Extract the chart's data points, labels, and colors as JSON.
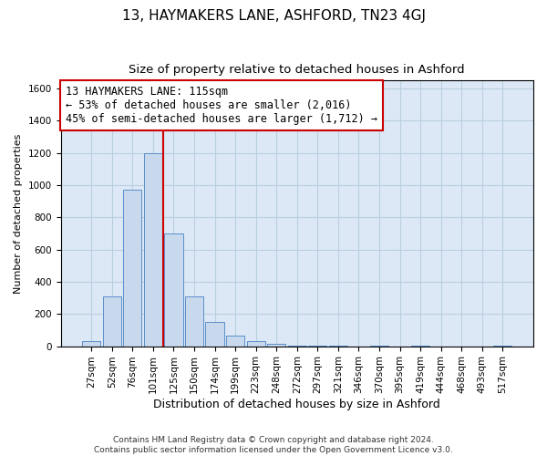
{
  "title": "13, HAYMAKERS LANE, ASHFORD, TN23 4GJ",
  "subtitle": "Size of property relative to detached houses in Ashford",
  "xlabel": "Distribution of detached houses by size in Ashford",
  "ylabel": "Number of detached properties",
  "bar_labels": [
    "27sqm",
    "52sqm",
    "76sqm",
    "101sqm",
    "125sqm",
    "150sqm",
    "174sqm",
    "199sqm",
    "223sqm",
    "248sqm",
    "272sqm",
    "297sqm",
    "321sqm",
    "346sqm",
    "370sqm",
    "395sqm",
    "419sqm",
    "444sqm",
    "468sqm",
    "493sqm",
    "517sqm"
  ],
  "bar_values": [
    30,
    310,
    970,
    1200,
    700,
    310,
    150,
    65,
    30,
    15,
    5,
    3,
    2,
    0,
    3,
    0,
    2,
    0,
    0,
    0,
    3
  ],
  "bar_color": "#c8d9ed",
  "bar_edge_color": "#5b8fc9",
  "vline_x": 3.5,
  "vline_color": "#cc0000",
  "annotation_text": "13 HAYMAKERS LANE: 115sqm\n← 53% of detached houses are smaller (2,016)\n45% of semi-detached houses are larger (1,712) →",
  "annotation_box_color": "#ffffff",
  "annotation_box_edge": "#cc0000",
  "ylim": [
    0,
    1650
  ],
  "yticks": [
    0,
    200,
    400,
    600,
    800,
    1000,
    1200,
    1400,
    1600
  ],
  "grid_color": "#b8cfe0",
  "background_color": "#dce8f5",
  "footer_text": "Contains HM Land Registry data © Crown copyright and database right 2024.\nContains public sector information licensed under the Open Government Licence v3.0.",
  "title_fontsize": 11,
  "subtitle_fontsize": 9.5,
  "xlabel_fontsize": 9,
  "ylabel_fontsize": 8,
  "tick_fontsize": 7.5,
  "annotation_fontsize": 8.5,
  "footer_fontsize": 6.5
}
